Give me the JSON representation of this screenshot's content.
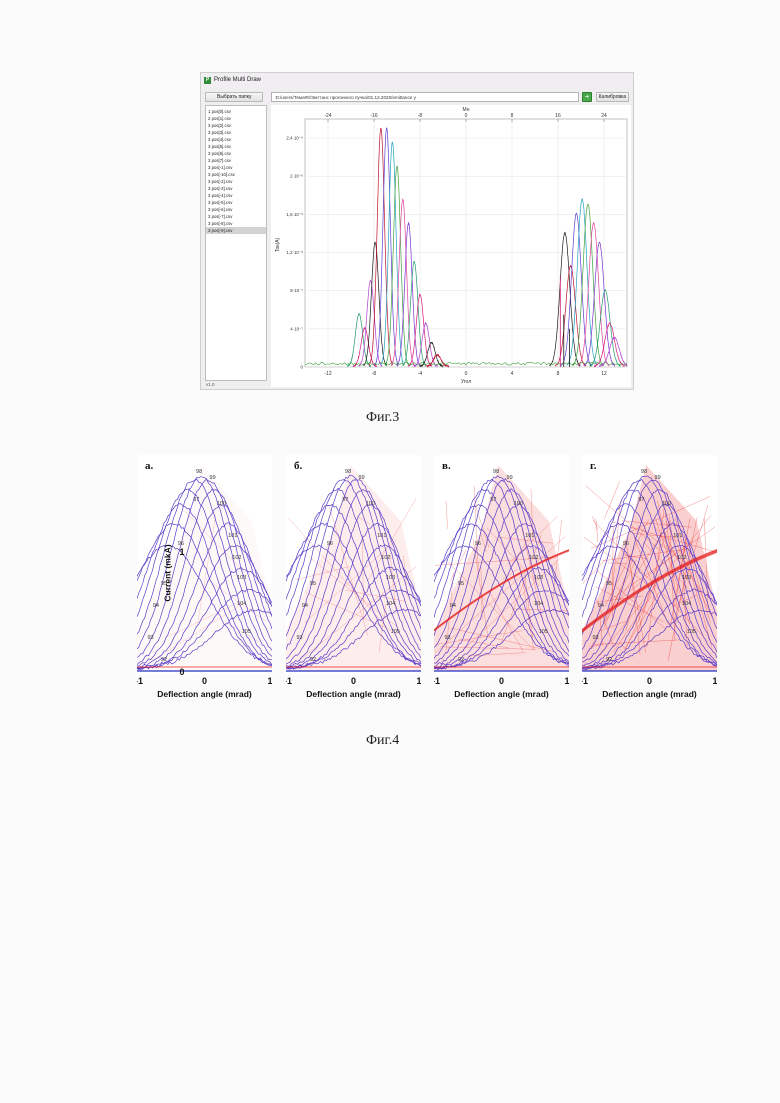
{
  "window": {
    "title": "Profile Multi Draw",
    "choose_folder_label": "Выбрать папку",
    "path_value": "D:/users/Тема#0/Эмттанс прогонного пучка/01.12.2020/emittance y",
    "calibrate_label": "Калибровка",
    "version": "v1.0",
    "files": [
      "1 pos[0].csv",
      "2 pos[1].csv",
      "3 pos[2].csv",
      "3 pos[3].csv",
      "3 pos[4].csv",
      "3 pos[5].csv",
      "3 pos[6].csv",
      "3 pos[7].csv",
      "3 pos[-1].csv",
      "3 pos[-10].csv",
      "3 pos[-2].csv",
      "3 pos[-3].csv",
      "3 pos[-4].csv",
      "3 pos[-5].csv",
      "3 pos[-6].csv",
      "3 pos[-7].csv",
      "3 pos[-8].csv",
      "3 pos[-9].csv"
    ],
    "selected_index": 17,
    "plot": {
      "top_axis_label": "Мн",
      "bottom_axis_label": "Угол",
      "y_axis_label": "Ток(A)",
      "top_ticks": [
        "-24",
        "-16",
        "-8",
        "0",
        "8",
        "16",
        "24"
      ],
      "bottom_ticks": [
        "-12",
        "-8",
        "-4",
        "0",
        "4",
        "8",
        "12"
      ],
      "y_ticks": [
        "0",
        "4·10⁻⁷",
        "8·10⁻⁷",
        "1,2·10⁻⁶",
        "1,6·10⁻⁶",
        "2·10⁻⁶",
        "2,4·10⁻⁶"
      ]
    }
  },
  "figure3_caption": "Фиг.3",
  "figure4_caption": "Фиг.4",
  "figure4": {
    "panels": [
      {
        "label": "а.",
        "density": 1
      },
      {
        "label": "б.",
        "density": 2
      },
      {
        "label": "в.",
        "density": 3
      },
      {
        "label": "г.",
        "density": 4
      }
    ],
    "ylabel": "Current (mkA)",
    "xlabel": "Deflection angle (mrad)",
    "x_ticks": [
      "-1",
      "0",
      "1"
    ],
    "y_ticks": [
      "0",
      "1"
    ],
    "curve_labels": [
      "98",
      "99",
      "97",
      "100",
      "96",
      "101",
      "102",
      "95",
      "103",
      "94",
      "104",
      "93",
      "105",
      "92"
    ],
    "colors": {
      "profile": "#5a3ec8",
      "fill": "#ef6b6b",
      "dense": "#e81e1e"
    }
  }
}
